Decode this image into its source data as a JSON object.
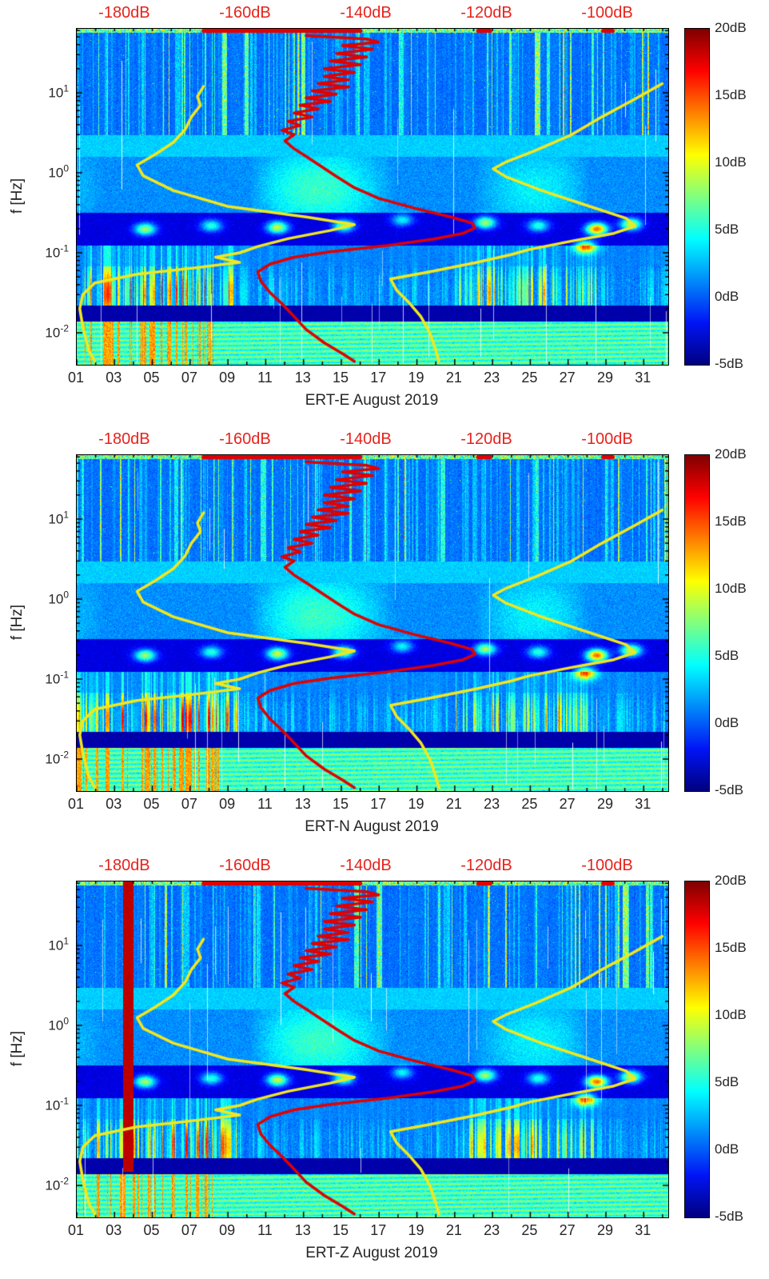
{
  "figure": {
    "description": "Three seismic spectrogram panels with median PSD (red) and noise-model (yellow) overlays",
    "month": "August 2019"
  },
  "colors": {
    "psd_curve_red": "#e00000",
    "noise_model_yellow": "#f2e71e",
    "top_axis_text_red": "#e6231c",
    "axis_text": "#262626",
    "background": "#ffffff"
  },
  "axes": {
    "x_tick_labels": [
      "01",
      "03",
      "05",
      "07",
      "09",
      "11",
      "13",
      "15",
      "17",
      "19",
      "21",
      "23",
      "25",
      "27",
      "29",
      "31"
    ],
    "x_tick_days": [
      1,
      3,
      5,
      7,
      9,
      11,
      13,
      15,
      17,
      19,
      21,
      23,
      25,
      27,
      29,
      31
    ],
    "x_range_days": [
      1,
      32.3
    ],
    "y_label": "f [Hz]",
    "y_scale": "log",
    "y_tick_labels": [
      {
        "base": "10",
        "exp": "1"
      },
      {
        "base": "10",
        "exp": "0"
      },
      {
        "base": "10",
        "exp": "-1"
      },
      {
        "base": "10",
        "exp": "-2"
      }
    ],
    "y_tick_values_hz": [
      10,
      1,
      0.1,
      0.01
    ],
    "y_range_hz": [
      0.004,
      63
    ],
    "top_axis_tick_labels": [
      "-180dB",
      "-160dB",
      "-140dB",
      "-120dB",
      "-100dB"
    ],
    "top_axis_tick_values": [
      -180,
      -160,
      -140,
      -120,
      -100
    ],
    "top_axis_range_db": [
      -188,
      -90
    ]
  },
  "colorbar": {
    "tick_labels": [
      "20dB",
      "15dB",
      "10dB",
      "5dB",
      "0dB",
      "-5dB"
    ],
    "tick_values": [
      20,
      15,
      10,
      5,
      0,
      -5
    ],
    "range_db": [
      -5,
      20
    ],
    "colormap": "jet"
  },
  "overlay_curves": {
    "median_psd_red": [
      [
        -150,
        52
      ],
      [
        -140,
        47
      ],
      [
        -138,
        43
      ],
      [
        -144,
        39
      ],
      [
        -139,
        35
      ],
      [
        -145,
        31
      ],
      [
        -140,
        28
      ],
      [
        -146,
        25
      ],
      [
        -141,
        22.5
      ],
      [
        -147,
        20
      ],
      [
        -142,
        18
      ],
      [
        -147,
        16
      ],
      [
        -143,
        14.5
      ],
      [
        -148,
        13
      ],
      [
        -143,
        11.8
      ],
      [
        -149,
        10.6
      ],
      [
        -145,
        9.6
      ],
      [
        -150,
        8.6
      ],
      [
        -146,
        7.8
      ],
      [
        -151,
        7
      ],
      [
        -148,
        6.3
      ],
      [
        -152,
        5.6
      ],
      [
        -149,
        5
      ],
      [
        -153,
        4.4
      ],
      [
        -151,
        3.9
      ],
      [
        -154,
        3.4
      ],
      [
        -152,
        3
      ],
      [
        -153.5,
        2.5
      ],
      [
        -152,
        2
      ],
      [
        -150,
        1.6
      ],
      [
        -147.5,
        1.2
      ],
      [
        -145,
        0.9
      ],
      [
        -142,
        0.65
      ],
      [
        -138,
        0.48
      ],
      [
        -132,
        0.36
      ],
      [
        -126,
        0.28
      ],
      [
        -122.5,
        0.235
      ],
      [
        -122,
        0.205
      ],
      [
        -124,
        0.175
      ],
      [
        -129,
        0.148
      ],
      [
        -137,
        0.122
      ],
      [
        -146,
        0.103
      ],
      [
        -152,
        0.088
      ],
      [
        -156,
        0.072
      ],
      [
        -158,
        0.058
      ],
      [
        -157.5,
        0.044
      ],
      [
        -156,
        0.032
      ],
      [
        -154,
        0.023
      ],
      [
        -152,
        0.016
      ],
      [
        -150,
        0.011
      ],
      [
        -147,
        0.0075
      ],
      [
        -144,
        0.0055
      ],
      [
        -142,
        0.0044
      ]
    ],
    "low_noise_model_yellow": [
      [
        -167,
        12
      ],
      [
        -168,
        9
      ],
      [
        -167.5,
        7
      ],
      [
        -169,
        5
      ],
      [
        -170,
        3.5
      ],
      [
        -172,
        2.4
      ],
      [
        -175,
        1.7
      ],
      [
        -178,
        1.25
      ],
      [
        -177,
        0.92
      ],
      [
        -172,
        0.6
      ],
      [
        -163,
        0.38
      ],
      [
        -150,
        0.28
      ],
      [
        -142,
        0.225
      ],
      [
        -146,
        0.19
      ],
      [
        -153,
        0.15
      ],
      [
        -158,
        0.12
      ],
      [
        -161,
        0.1
      ],
      [
        -165,
        0.088
      ],
      [
        -161,
        0.076
      ],
      [
        -169,
        0.064
      ],
      [
        -178,
        0.054
      ],
      [
        -185,
        0.042
      ],
      [
        -187,
        0.03
      ],
      [
        -187.5,
        0.02
      ],
      [
        -187,
        0.012
      ],
      [
        -186,
        0.006
      ],
      [
        -185,
        0.0044
      ]
    ],
    "high_noise_model_yellow": [
      [
        -91,
        13
      ],
      [
        -96,
        8
      ],
      [
        -101,
        5
      ],
      [
        -106,
        3
      ],
      [
        -112,
        1.9
      ],
      [
        -117,
        1.35
      ],
      [
        -119,
        1.12
      ],
      [
        -117,
        0.9
      ],
      [
        -111,
        0.6
      ],
      [
        -103,
        0.38
      ],
      [
        -97,
        0.27
      ],
      [
        -95.5,
        0.215
      ],
      [
        -99,
        0.175
      ],
      [
        -106,
        0.14
      ],
      [
        -113,
        0.11
      ],
      [
        -116,
        0.095
      ],
      [
        -122,
        0.075
      ],
      [
        -130,
        0.057
      ],
      [
        -136,
        0.047
      ],
      [
        -135,
        0.034
      ],
      [
        -133,
        0.024
      ],
      [
        -131,
        0.016
      ],
      [
        -129.5,
        0.01
      ],
      [
        -128.5,
        0.006
      ],
      [
        -128,
        0.0044
      ]
    ],
    "top_edge_marks_db": [
      [
        -167,
        -141
      ],
      [
        -121.5,
        -119.5
      ],
      [
        -100.8,
        -99.2
      ]
    ]
  },
  "chart_data": [
    {
      "type": "heatmap",
      "subtype": "spectrogram",
      "channel": "ERT-E",
      "xlabel": "ERT-E August 2019",
      "ylabel": "f [Hz]",
      "value_unit": "dB",
      "color_range_db": [
        -5,
        20
      ],
      "texture_hints": {
        "microseism_hotspots_day_hz_amp": [
          [
            4.6,
            0.2,
            11
          ],
          [
            8.1,
            0.22,
            8
          ],
          [
            11.6,
            0.21,
            12
          ],
          [
            15.1,
            0.22,
            10
          ],
          [
            18.2,
            0.26,
            7
          ],
          [
            22.6,
            0.24,
            11
          ],
          [
            25.4,
            0.22,
            8
          ],
          [
            28.5,
            0.2,
            17
          ],
          [
            27.9,
            0.12,
            13
          ],
          [
            30.3,
            0.23,
            12
          ]
        ],
        "low_freq_noisy_day_ranges": [
          [
            1,
            9.5
          ],
          [
            21,
            28.5
          ]
        ],
        "anomaly_bar_days": null
      }
    },
    {
      "type": "heatmap",
      "subtype": "spectrogram",
      "channel": "ERT-N",
      "xlabel": "ERT-N August 2019",
      "ylabel": "f [Hz]",
      "value_unit": "dB",
      "color_range_db": [
        -5,
        20
      ],
      "texture_hints": {
        "microseism_hotspots_day_hz_amp": [
          [
            4.6,
            0.2,
            11
          ],
          [
            8.1,
            0.22,
            8
          ],
          [
            11.6,
            0.21,
            12
          ],
          [
            15.1,
            0.22,
            10
          ],
          [
            18.2,
            0.26,
            7
          ],
          [
            22.6,
            0.24,
            11
          ],
          [
            25.4,
            0.22,
            8
          ],
          [
            28.5,
            0.2,
            17
          ],
          [
            27.9,
            0.12,
            13
          ],
          [
            30.3,
            0.23,
            12
          ]
        ],
        "low_freq_noisy_day_ranges": [
          [
            1,
            9.5
          ],
          [
            21,
            28.5
          ]
        ],
        "anomaly_bar_days": null
      }
    },
    {
      "type": "heatmap",
      "subtype": "spectrogram",
      "channel": "ERT-Z",
      "xlabel": "ERT-Z August 2019",
      "ylabel": "f [Hz]",
      "value_unit": "dB",
      "color_range_db": [
        -5,
        20
      ],
      "texture_hints": {
        "microseism_hotspots_day_hz_amp": [
          [
            4.6,
            0.2,
            11
          ],
          [
            8.1,
            0.22,
            8
          ],
          [
            11.6,
            0.21,
            12
          ],
          [
            15.1,
            0.22,
            10
          ],
          [
            18.2,
            0.26,
            7
          ],
          [
            22.6,
            0.24,
            11
          ],
          [
            25.4,
            0.22,
            8
          ],
          [
            28.5,
            0.2,
            17
          ],
          [
            27.9,
            0.12,
            13
          ],
          [
            30.3,
            0.23,
            12
          ]
        ],
        "low_freq_noisy_day_ranges": [
          [
            1,
            9.5
          ],
          [
            21,
            28.5
          ]
        ],
        "anomaly_bar_days": [
          3.45,
          4.0
        ]
      }
    }
  ]
}
